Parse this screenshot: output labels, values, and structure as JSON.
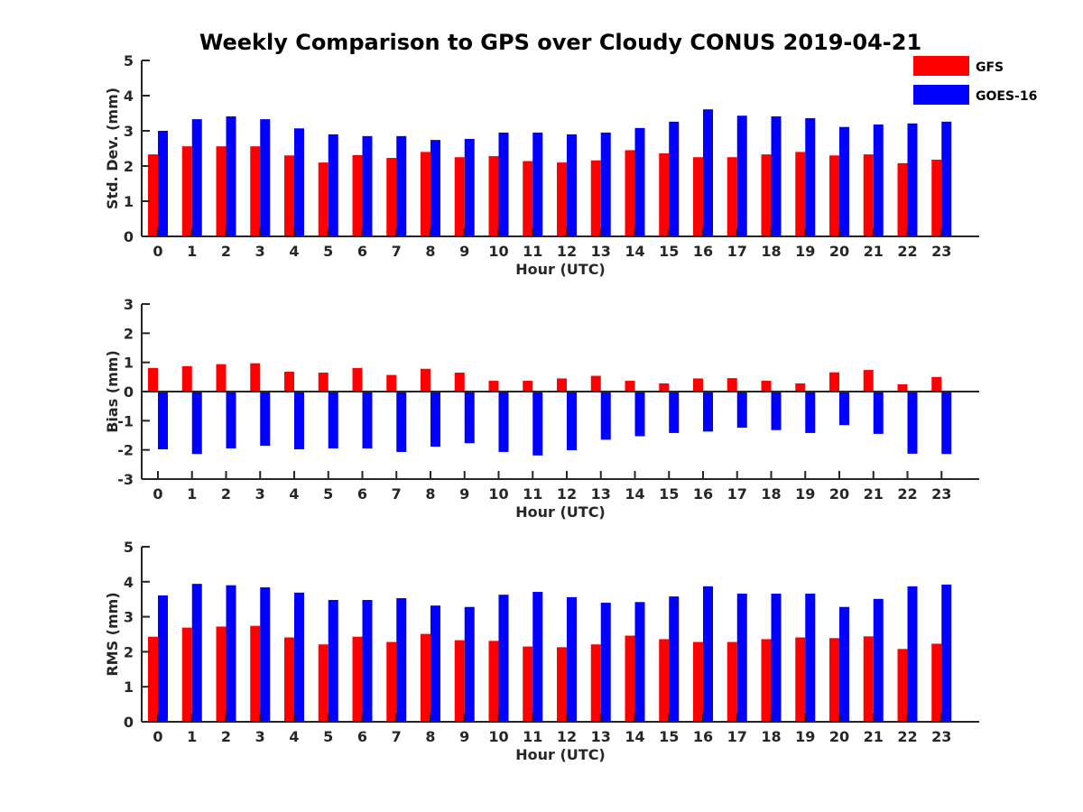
{
  "figure": {
    "title": "Weekly Comparison to GPS over Cloudy CONUS 2019-04-21"
  },
  "legend": {
    "placement": "top-right",
    "entries": [
      {
        "name": "GFS",
        "color": "#ff0000"
      },
      {
        "name": "GOES-16",
        "color": "#0000ff"
      }
    ]
  },
  "chart_data": [
    {
      "type": "bar",
      "title": "Weekly Comparison to GPS over Cloudy CONUS 2019-04-21",
      "xlabel": "Hour (UTC)",
      "ylabel": "Std. Dev. (mm)",
      "ylim": [
        0,
        5
      ],
      "yticks": [
        0,
        1,
        2,
        3,
        4,
        5
      ],
      "grid": false,
      "categories": [
        "0",
        "1",
        "2",
        "3",
        "4",
        "5",
        "6",
        "7",
        "8",
        "9",
        "10",
        "11",
        "12",
        "13",
        "14",
        "15",
        "16",
        "17",
        "18",
        "19",
        "20",
        "21",
        "22",
        "23"
      ],
      "series": [
        {
          "name": "GFS",
          "color": "#ff0000",
          "values": [
            2.33,
            2.56,
            2.56,
            2.56,
            2.3,
            2.1,
            2.31,
            2.23,
            2.4,
            2.25,
            2.28,
            2.14,
            2.1,
            2.16,
            2.45,
            2.36,
            2.25,
            2.25,
            2.33,
            2.4,
            2.3,
            2.33,
            2.08,
            2.18
          ]
        },
        {
          "name": "GOES-16",
          "color": "#0000ff",
          "values": [
            3.0,
            3.33,
            3.41,
            3.33,
            3.07,
            2.9,
            2.85,
            2.85,
            2.74,
            2.77,
            2.95,
            2.95,
            2.9,
            2.95,
            3.08,
            3.26,
            3.61,
            3.43,
            3.41,
            3.36,
            3.11,
            3.18,
            3.21,
            3.26
          ]
        }
      ]
    },
    {
      "type": "bar",
      "xlabel": "Hour (UTC)",
      "ylabel": "Bias (mm)",
      "ylim": [
        -3,
        3
      ],
      "yticks": [
        -3,
        -2,
        -1,
        0,
        1,
        2,
        3
      ],
      "grid": false,
      "categories": [
        "0",
        "1",
        "2",
        "3",
        "4",
        "5",
        "6",
        "7",
        "8",
        "9",
        "10",
        "11",
        "12",
        "13",
        "14",
        "15",
        "16",
        "17",
        "18",
        "19",
        "20",
        "21",
        "22",
        "23"
      ],
      "series": [
        {
          "name": "GFS",
          "color": "#ff0000",
          "values": [
            0.81,
            0.87,
            0.94,
            0.97,
            0.68,
            0.65,
            0.81,
            0.57,
            0.78,
            0.65,
            0.37,
            0.37,
            0.45,
            0.54,
            0.37,
            0.28,
            0.45,
            0.46,
            0.37,
            0.28,
            0.66,
            0.74,
            0.25,
            0.5
          ]
        },
        {
          "name": "GOES-16",
          "color": "#0000ff",
          "values": [
            -1.98,
            -2.14,
            -1.95,
            -1.86,
            -1.98,
            -1.95,
            -1.95,
            -2.07,
            -1.89,
            -1.77,
            -2.07,
            -2.19,
            -2.01,
            -1.65,
            -1.53,
            -1.42,
            -1.37,
            -1.24,
            -1.32,
            -1.42,
            -1.15,
            -1.45,
            -2.13,
            -2.14
          ]
        }
      ]
    },
    {
      "type": "bar",
      "xlabel": "Hour (UTC)",
      "ylabel": "RMS (mm)",
      "ylim": [
        0,
        5
      ],
      "yticks": [
        0,
        1,
        2,
        3,
        4,
        5
      ],
      "grid": false,
      "categories": [
        "0",
        "1",
        "2",
        "3",
        "4",
        "5",
        "6",
        "7",
        "8",
        "9",
        "10",
        "11",
        "12",
        "13",
        "14",
        "15",
        "16",
        "17",
        "18",
        "19",
        "20",
        "21",
        "22",
        "23"
      ],
      "series": [
        {
          "name": "GFS",
          "color": "#ff0000",
          "values": [
            2.43,
            2.69,
            2.72,
            2.74,
            2.41,
            2.21,
            2.43,
            2.28,
            2.51,
            2.33,
            2.31,
            2.15,
            2.13,
            2.21,
            2.46,
            2.36,
            2.28,
            2.28,
            2.36,
            2.41,
            2.39,
            2.44,
            2.08,
            2.23
          ]
        },
        {
          "name": "GOES-16",
          "color": "#0000ff",
          "values": [
            3.61,
            3.94,
            3.9,
            3.84,
            3.69,
            3.48,
            3.48,
            3.53,
            3.32,
            3.28,
            3.63,
            3.71,
            3.56,
            3.4,
            3.42,
            3.58,
            3.87,
            3.66,
            3.66,
            3.66,
            3.28,
            3.51,
            3.87,
            3.92
          ]
        }
      ]
    }
  ]
}
